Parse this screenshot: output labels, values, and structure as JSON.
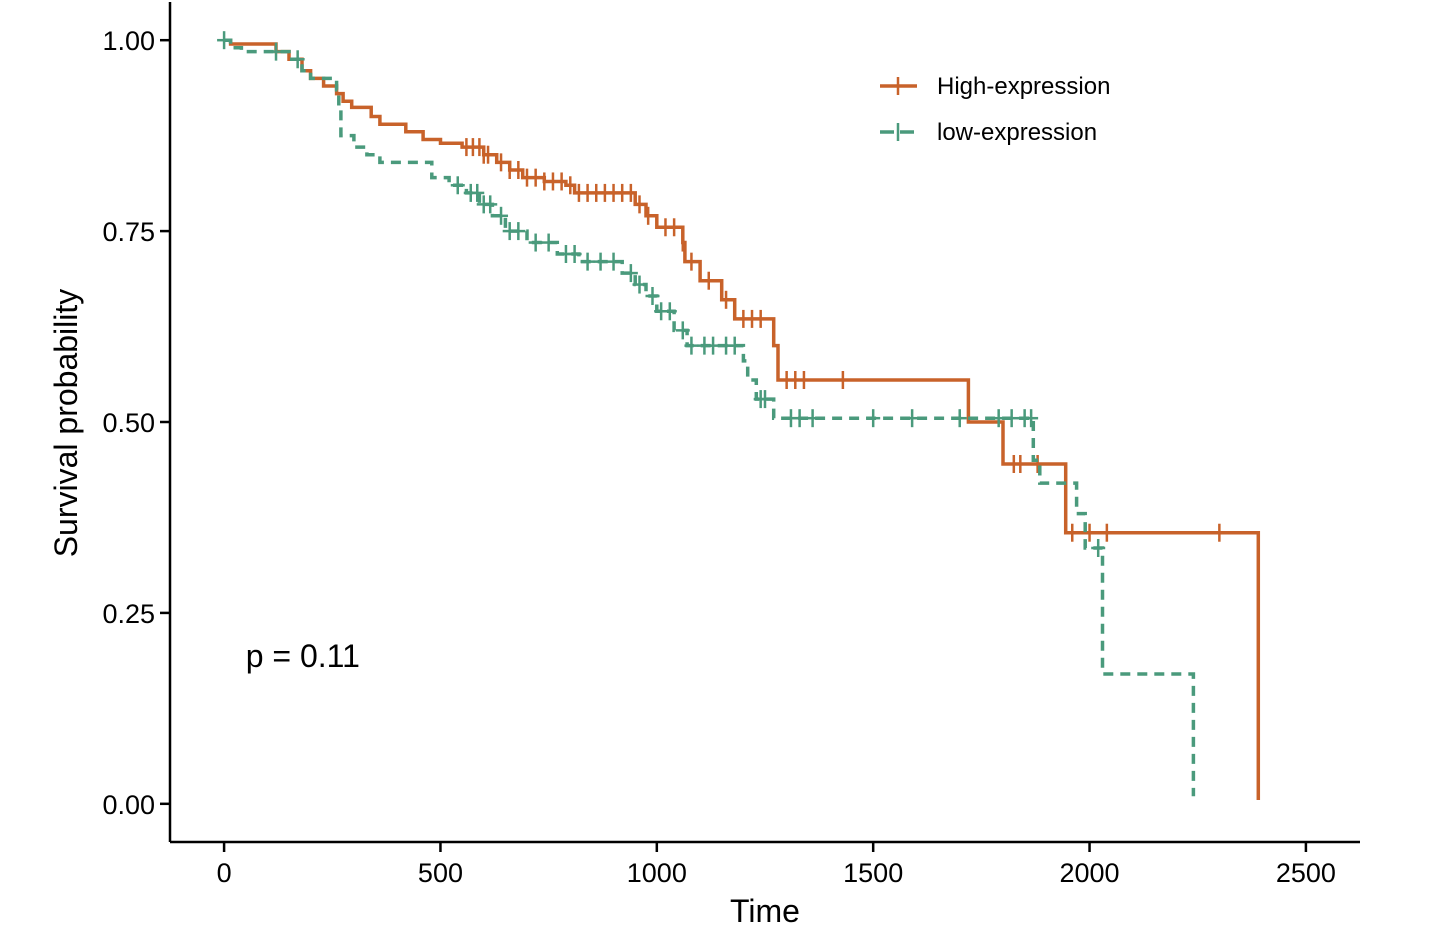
{
  "chart_data": {
    "type": "line",
    "subtype": "kaplan-meier",
    "title": "",
    "xlabel": "Time",
    "ylabel": "Survival probability",
    "xlim": [
      -125,
      2625
    ],
    "ylim": [
      -0.05,
      1.05
    ],
    "x_ticks": [
      0,
      500,
      1000,
      1500,
      2000,
      2500
    ],
    "y_ticks": [
      0.0,
      0.25,
      0.5,
      0.75,
      1.0
    ],
    "x_tick_labels": [
      "0",
      "500",
      "1000",
      "1500",
      "2000",
      "2500"
    ],
    "y_tick_labels": [
      "0.00",
      "0.25",
      "0.50",
      "0.75",
      "1.00"
    ],
    "grid": false,
    "legend_position": "top-right",
    "annotation": {
      "text": "p = 0.11",
      "x": 50,
      "y": 0.195
    },
    "series": [
      {
        "name": "High-expression",
        "color": "#C8622A",
        "line_style": "solid",
        "steps": [
          [
            0,
            1.0
          ],
          [
            15,
            0.995
          ],
          [
            120,
            0.985
          ],
          [
            150,
            0.975
          ],
          [
            180,
            0.96
          ],
          [
            200,
            0.95
          ],
          [
            230,
            0.94
          ],
          [
            260,
            0.93
          ],
          [
            275,
            0.92
          ],
          [
            295,
            0.912
          ],
          [
            340,
            0.9
          ],
          [
            360,
            0.89
          ],
          [
            420,
            0.88
          ],
          [
            460,
            0.87
          ],
          [
            500,
            0.865
          ],
          [
            550,
            0.86
          ],
          [
            600,
            0.85
          ],
          [
            630,
            0.84
          ],
          [
            660,
            0.83
          ],
          [
            690,
            0.82
          ],
          [
            740,
            0.815
          ],
          [
            790,
            0.81
          ],
          [
            810,
            0.8
          ],
          [
            950,
            0.785
          ],
          [
            975,
            0.77
          ],
          [
            1000,
            0.755
          ],
          [
            1060,
            0.735
          ],
          [
            1065,
            0.71
          ],
          [
            1100,
            0.685
          ],
          [
            1150,
            0.66
          ],
          [
            1180,
            0.635
          ],
          [
            1270,
            0.6
          ],
          [
            1280,
            0.555
          ],
          [
            1720,
            0.5
          ],
          [
            1800,
            0.445
          ],
          [
            1945,
            0.355
          ],
          [
            2390,
            0.005
          ]
        ],
        "censor_times": [
          560,
          575,
          590,
          600,
          610,
          640,
          660,
          680,
          700,
          720,
          740,
          760,
          780,
          800,
          820,
          840,
          860,
          880,
          900,
          920,
          940,
          960,
          980,
          1020,
          1040,
          1060,
          1080,
          1120,
          1160,
          1200,
          1220,
          1240,
          1300,
          1320,
          1340,
          1430,
          1825,
          1840,
          1880,
          1960,
          2000,
          2040,
          2300
        ]
      },
      {
        "name": "low-expression",
        "color": "#4A9A7C",
        "line_style": "dashed",
        "steps": [
          [
            0,
            1.0
          ],
          [
            15,
            0.99
          ],
          [
            40,
            0.985
          ],
          [
            150,
            0.975
          ],
          [
            180,
            0.96
          ],
          [
            200,
            0.95
          ],
          [
            260,
            0.935
          ],
          [
            265,
            0.91
          ],
          [
            270,
            0.875
          ],
          [
            300,
            0.86
          ],
          [
            330,
            0.85
          ],
          [
            360,
            0.84
          ],
          [
            480,
            0.82
          ],
          [
            520,
            0.81
          ],
          [
            560,
            0.8
          ],
          [
            590,
            0.785
          ],
          [
            620,
            0.77
          ],
          [
            650,
            0.75
          ],
          [
            700,
            0.735
          ],
          [
            770,
            0.72
          ],
          [
            820,
            0.71
          ],
          [
            920,
            0.695
          ],
          [
            950,
            0.68
          ],
          [
            975,
            0.665
          ],
          [
            1000,
            0.645
          ],
          [
            1040,
            0.62
          ],
          [
            1070,
            0.6
          ],
          [
            1200,
            0.58
          ],
          [
            1210,
            0.555
          ],
          [
            1230,
            0.53
          ],
          [
            1270,
            0.505
          ],
          [
            1870,
            0.45
          ],
          [
            1885,
            0.42
          ],
          [
            1970,
            0.38
          ],
          [
            1990,
            0.335
          ],
          [
            2030,
            0.17
          ],
          [
            2240,
            0.01
          ]
        ],
        "censor_times": [
          0,
          120,
          170,
          540,
          570,
          585,
          600,
          615,
          640,
          660,
          680,
          720,
          750,
          790,
          810,
          840,
          870,
          900,
          940,
          960,
          990,
          1010,
          1030,
          1060,
          1080,
          1110,
          1130,
          1160,
          1180,
          1240,
          1250,
          1310,
          1330,
          1360,
          1500,
          1590,
          1700,
          1790,
          1820,
          1850,
          1865,
          2020
        ]
      }
    ]
  }
}
